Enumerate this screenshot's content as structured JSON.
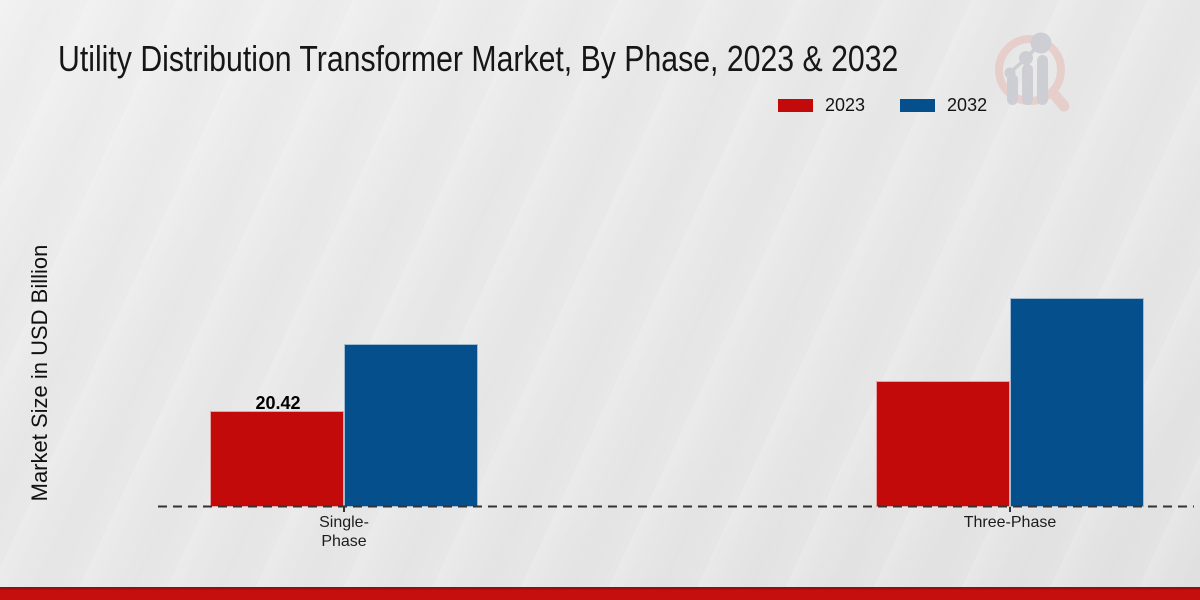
{
  "page": {
    "title": "Utility Distribution Transformer Market, By Phase, 2023 & 2032"
  },
  "legend": {
    "items": [
      {
        "label": "2023",
        "color": "#c20a0a"
      },
      {
        "label": "2032",
        "color": "#05508c"
      }
    ]
  },
  "y_axis": {
    "label": "Market Size in USD Billion"
  },
  "x_axis": {
    "tick_labels": [
      "Single-\nPhase",
      "Three-Phase"
    ]
  },
  "annotations": {
    "single_phase_2023_value": "20.42"
  },
  "watermark": {
    "name": "market-research-future-logo"
  },
  "colors": {
    "bar_2023": "#c20a0a",
    "bar_2032": "#05508c",
    "baseline": "#333333",
    "footer_band": "#c50e0e",
    "background": "#e9e9e9"
  },
  "chart_data": {
    "type": "bar",
    "title": "Utility Distribution Transformer Market, By Phase, 2023 & 2032",
    "categories": [
      "Single-Phase",
      "Three-Phase"
    ],
    "series": [
      {
        "name": "2023",
        "color": "#c20a0a",
        "values": [
          20.42,
          26.8
        ]
      },
      {
        "name": "2032",
        "color": "#05508c",
        "values": [
          34.7,
          44.5
        ]
      }
    ],
    "value_labels": [
      {
        "series": "2023",
        "category": "Single-Phase",
        "text": "20.42"
      }
    ],
    "xlabel": "",
    "ylabel": "Market Size in USD Billion",
    "ylim": [
      0,
      50
    ],
    "grid": false,
    "legend_position": "top-right",
    "axis_style": "dashed-baseline-only",
    "note": "Only the Single-Phase 2023 bar shows an on-chart data label (20.42); remaining values estimated from bar heights."
  }
}
